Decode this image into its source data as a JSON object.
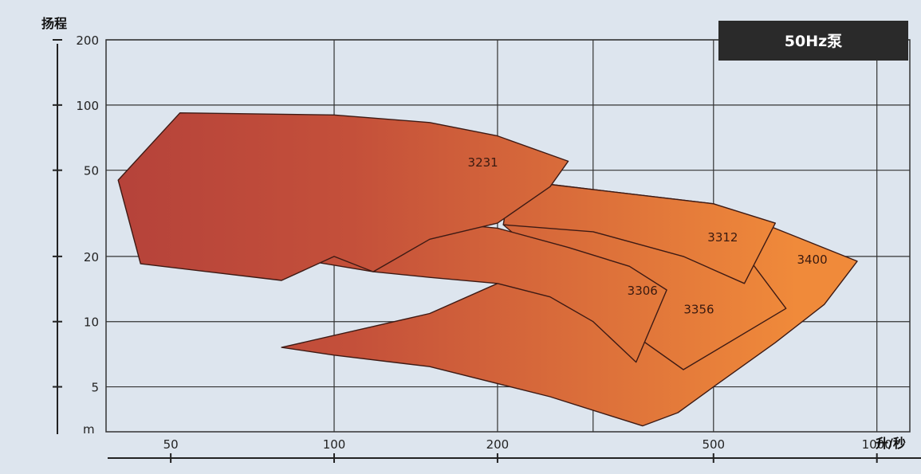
{
  "chart_data": {
    "type": "area",
    "title": "",
    "badge": "50Hz泵",
    "xlabel": "升/秒",
    "ylabel": "扬程",
    "ylabel_unit": "m",
    "x_scale": "log",
    "y_scale": "log",
    "xlim": [
      38,
      1150
    ],
    "ylim": [
      3.1,
      200
    ],
    "x_ticks": [
      50,
      100,
      200,
      500,
      1000
    ],
    "x_tick_labels": [
      "50",
      "100",
      "200",
      "500",
      "1000"
    ],
    "y_ticks": [
      5,
      10,
      20,
      50,
      100,
      200
    ],
    "y_tick_labels": [
      "5",
      "10",
      "20",
      "50",
      "100",
      "200"
    ],
    "grid": true,
    "colors": {
      "dark": "#b5423a",
      "light": "#f08a3a",
      "edge": "#3d1a14",
      "badge": "#2a2a2a",
      "background": "#dde5ee"
    },
    "series": [
      {
        "name": "3400",
        "label_at": [
          760,
          18.5
        ],
        "boundary": [
          [
            80,
            7.6
          ],
          [
            118,
            9.5
          ],
          [
            150,
            10.9
          ],
          [
            200,
            15
          ],
          [
            260,
            27
          ],
          [
            210,
            41
          ],
          [
            250,
            43
          ],
          [
            500,
            35
          ],
          [
            700,
            25
          ],
          [
            920,
            19
          ],
          [
            800,
            12
          ],
          [
            650,
            8
          ],
          [
            500,
            5
          ],
          [
            430,
            3.8
          ],
          [
            370,
            3.3
          ],
          [
            320,
            3.7
          ],
          [
            250,
            4.5
          ],
          [
            150,
            6.2
          ],
          [
            100,
            7
          ],
          [
            80,
            7.6
          ]
        ]
      },
      {
        "name": "3356",
        "label_at": [
          470,
          10.9
        ],
        "boundary": [
          [
            205,
            28
          ],
          [
            400,
            26
          ],
          [
            560,
            22
          ],
          [
            680,
            11.5
          ],
          [
            440,
            6
          ],
          [
            330,
            10
          ],
          [
            205,
            28
          ]
        ]
      },
      {
        "name": "3312",
        "label_at": [
          520,
          23.5
        ],
        "boundary": [
          [
            210,
            41
          ],
          [
            250,
            43
          ],
          [
            500,
            35
          ],
          [
            650,
            28.5
          ],
          [
            570,
            15
          ],
          [
            440,
            20
          ],
          [
            300,
            26
          ],
          [
            205,
            28
          ],
          [
            210,
            41
          ]
        ]
      },
      {
        "name": "3306",
        "label_at": [
          370,
          13.3
        ],
        "boundary": [
          [
            80,
            20
          ],
          [
            93,
            30
          ],
          [
            150,
            29
          ],
          [
            200,
            27
          ],
          [
            270,
            22
          ],
          [
            350,
            18
          ],
          [
            410,
            14
          ],
          [
            360,
            6.5
          ],
          [
            300,
            10
          ],
          [
            250,
            13
          ],
          [
            200,
            15
          ],
          [
            150,
            16
          ],
          [
            118,
            17
          ],
          [
            80,
            20
          ]
        ]
      },
      {
        "name": "3231",
        "label_at": [
          188,
          52
        ],
        "boundary": [
          [
            40,
            45
          ],
          [
            52,
            92
          ],
          [
            100,
            90
          ],
          [
            150,
            83
          ],
          [
            200,
            72
          ],
          [
            270,
            55
          ],
          [
            250,
            42
          ],
          [
            200,
            28.5
          ],
          [
            150,
            24
          ],
          [
            118,
            17
          ],
          [
            100,
            20
          ],
          [
            80,
            15.5
          ],
          [
            44,
            18.5
          ],
          [
            40,
            45
          ]
        ]
      }
    ]
  }
}
